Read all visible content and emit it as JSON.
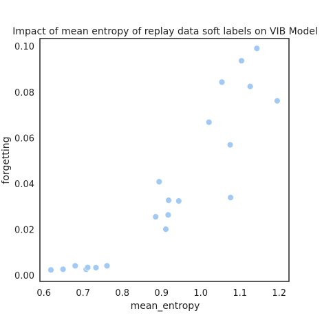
{
  "chart_data": {
    "type": "scatter",
    "title": "Impact of mean entropy of replay data soft labels on VIB Model",
    "xlabel": "mean_entropy",
    "ylabel": "forgetting",
    "xlim": [
      0.59,
      1.225
    ],
    "ylim": [
      -0.0025,
      0.1035
    ],
    "x_ticks": [
      0.6,
      0.7,
      0.8,
      0.9,
      1.0,
      1.1,
      1.2
    ],
    "x_tick_labels": [
      "0.6",
      "0.7",
      "0.8",
      "0.9",
      "1.0",
      "1.1",
      "1.2"
    ],
    "y_ticks": [
      0.0,
      0.02,
      0.04,
      0.06,
      0.08,
      0.1
    ],
    "y_tick_labels": [
      "0.00",
      "0.02",
      "0.04",
      "0.06",
      "0.08",
      "0.10"
    ],
    "grid": false,
    "legend": "none",
    "marker_color": "#a1c9f4",
    "points": [
      {
        "x": 0.618,
        "y": 0.0025
      },
      {
        "x": 0.649,
        "y": 0.0028
      },
      {
        "x": 0.68,
        "y": 0.0043
      },
      {
        "x": 0.708,
        "y": 0.0028
      },
      {
        "x": 0.712,
        "y": 0.0036
      },
      {
        "x": 0.733,
        "y": 0.0035
      },
      {
        "x": 0.761,
        "y": 0.0043
      },
      {
        "x": 0.885,
        "y": 0.0257
      },
      {
        "x": 0.894,
        "y": 0.041
      },
      {
        "x": 0.911,
        "y": 0.0203
      },
      {
        "x": 0.917,
        "y": 0.0265
      },
      {
        "x": 0.918,
        "y": 0.0329
      },
      {
        "x": 0.944,
        "y": 0.0326
      },
      {
        "x": 1.021,
        "y": 0.067
      },
      {
        "x": 1.054,
        "y": 0.0845
      },
      {
        "x": 1.075,
        "y": 0.0571
      },
      {
        "x": 1.076,
        "y": 0.0341
      },
      {
        "x": 1.104,
        "y": 0.0938
      },
      {
        "x": 1.126,
        "y": 0.0826
      },
      {
        "x": 1.143,
        "y": 0.0992
      },
      {
        "x": 1.195,
        "y": 0.0763
      }
    ]
  }
}
